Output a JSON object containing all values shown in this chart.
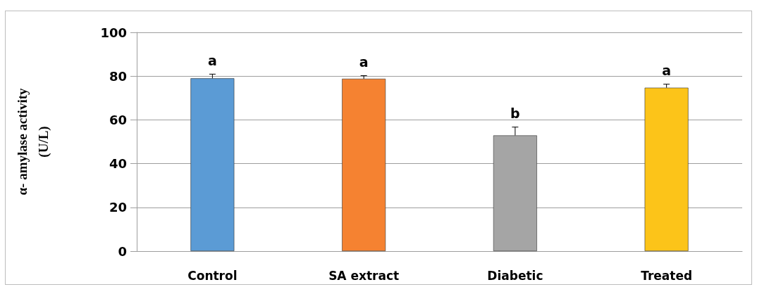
{
  "chart_data": {
    "type": "bar",
    "ylabel": "α- amylase activity\n(U/L)",
    "categories": [
      "Control",
      "SA extract",
      "Diabetic",
      "Treated"
    ],
    "values": [
      79,
      78.8,
      52.9,
      74.7
    ],
    "colors": [
      "#5b9bd5",
      "#f58231",
      "#a5a5a5",
      "#fcc419"
    ],
    "errors": [
      [
        79,
        80.9
      ],
      [
        78.8,
        80.2
      ],
      [
        52.9,
        56.7
      ],
      [
        74.7,
        76.3
      ]
    ],
    "ylim": [
      0,
      100
    ],
    "yticks": [
      0,
      20,
      40,
      60,
      80,
      100
    ],
    "grid": "y",
    "annotations": [
      "a",
      "a",
      "b",
      "a"
    ]
  }
}
